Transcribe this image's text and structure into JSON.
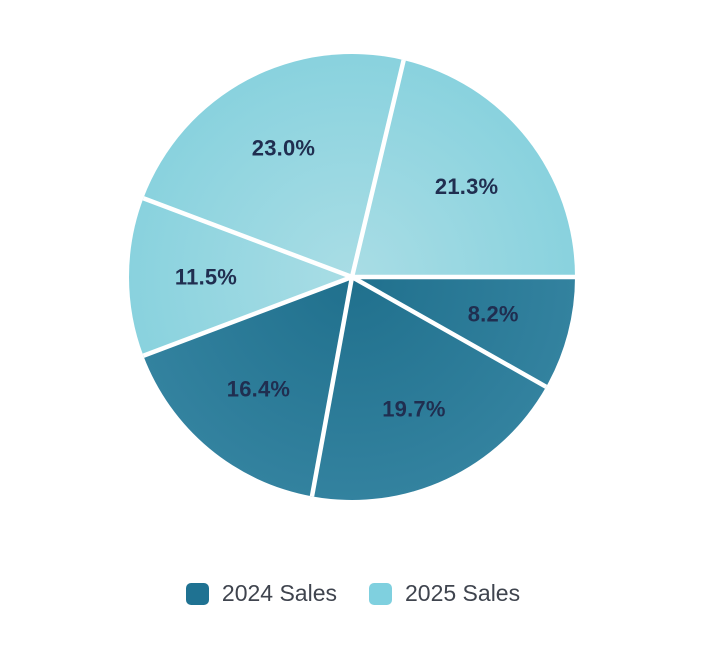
{
  "chart_data": {
    "type": "pie",
    "title": "",
    "start_angle_deg": 0,
    "direction": "clockwise",
    "legend_position": "bottom",
    "background_color": "#FFFFFF",
    "separator_color": "#FFFFFF",
    "label_color": "#202E50",
    "legend_text_color": "#3F444E",
    "series": [
      {
        "name": "2024 Sales",
        "color": "#1F7292",
        "gradient_center": "#20708D",
        "gradient_edge": "#33829F"
      },
      {
        "name": "2025 Sales",
        "color": "#7FD0DF",
        "gradient_center": "#A9DDE5",
        "gradient_edge": "#89D2DE"
      }
    ],
    "slices": [
      {
        "label": "8.2%",
        "value": 8.2,
        "series_index": 0
      },
      {
        "label": "19.7%",
        "value": 19.7,
        "series_index": 0
      },
      {
        "label": "16.4%",
        "value": 16.4,
        "series_index": 0
      },
      {
        "label": "11.5%",
        "value": 11.5,
        "series_index": 1
      },
      {
        "label": "23.0%",
        "value": 23.0,
        "series_index": 1
      },
      {
        "label": "21.3%",
        "value": 21.3,
        "series_index": 1
      }
    ]
  }
}
